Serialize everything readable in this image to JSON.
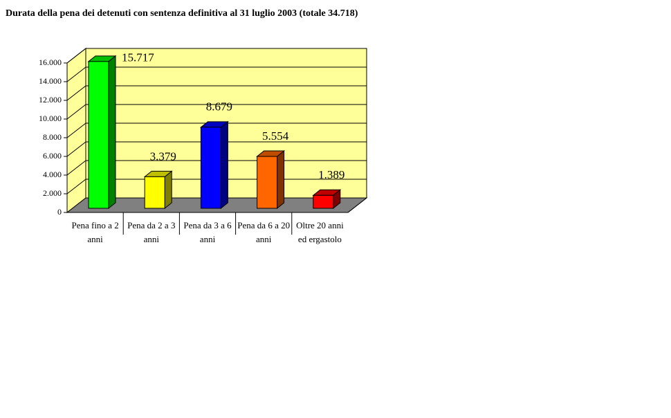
{
  "chart_data": {
    "type": "bar3d",
    "title": "Durata della pena dei detenuti con sentenza definitiva al 31 luglio 2003 (totale 34.718)",
    "categories": [
      "Pena fino a 2 anni",
      "Pena da 2 a 3 anni",
      "Pena da 3 a 6 anni",
      "Pena da 6 a 20 anni",
      "Oltre 20 anni ed ergastolo"
    ],
    "values": [
      15717,
      3379,
      8679,
      5554,
      1389
    ],
    "value_labels": [
      "15.717",
      "3.379",
      "8.679",
      "5.554",
      "1.389"
    ],
    "colors": [
      "#00ff00",
      "#ffff00",
      "#0000ff",
      "#ff6600",
      "#ff0000"
    ],
    "ylim": [
      0,
      16000
    ],
    "yticks": [
      0,
      {
        "value": 2000,
        "label": "2.000"
      },
      {
        "value": 4000,
        "label": "4.000"
      },
      {
        "value": 6000,
        "label": "6.000"
      },
      {
        "value": 8000,
        "label": "8.000"
      },
      {
        "value": 10000,
        "label": "10.000"
      },
      {
        "value": 12000,
        "label": "12.000"
      },
      {
        "value": 14000,
        "label": "14.000"
      },
      {
        "value": 16000,
        "label": "16.000"
      }
    ],
    "grid": true
  }
}
